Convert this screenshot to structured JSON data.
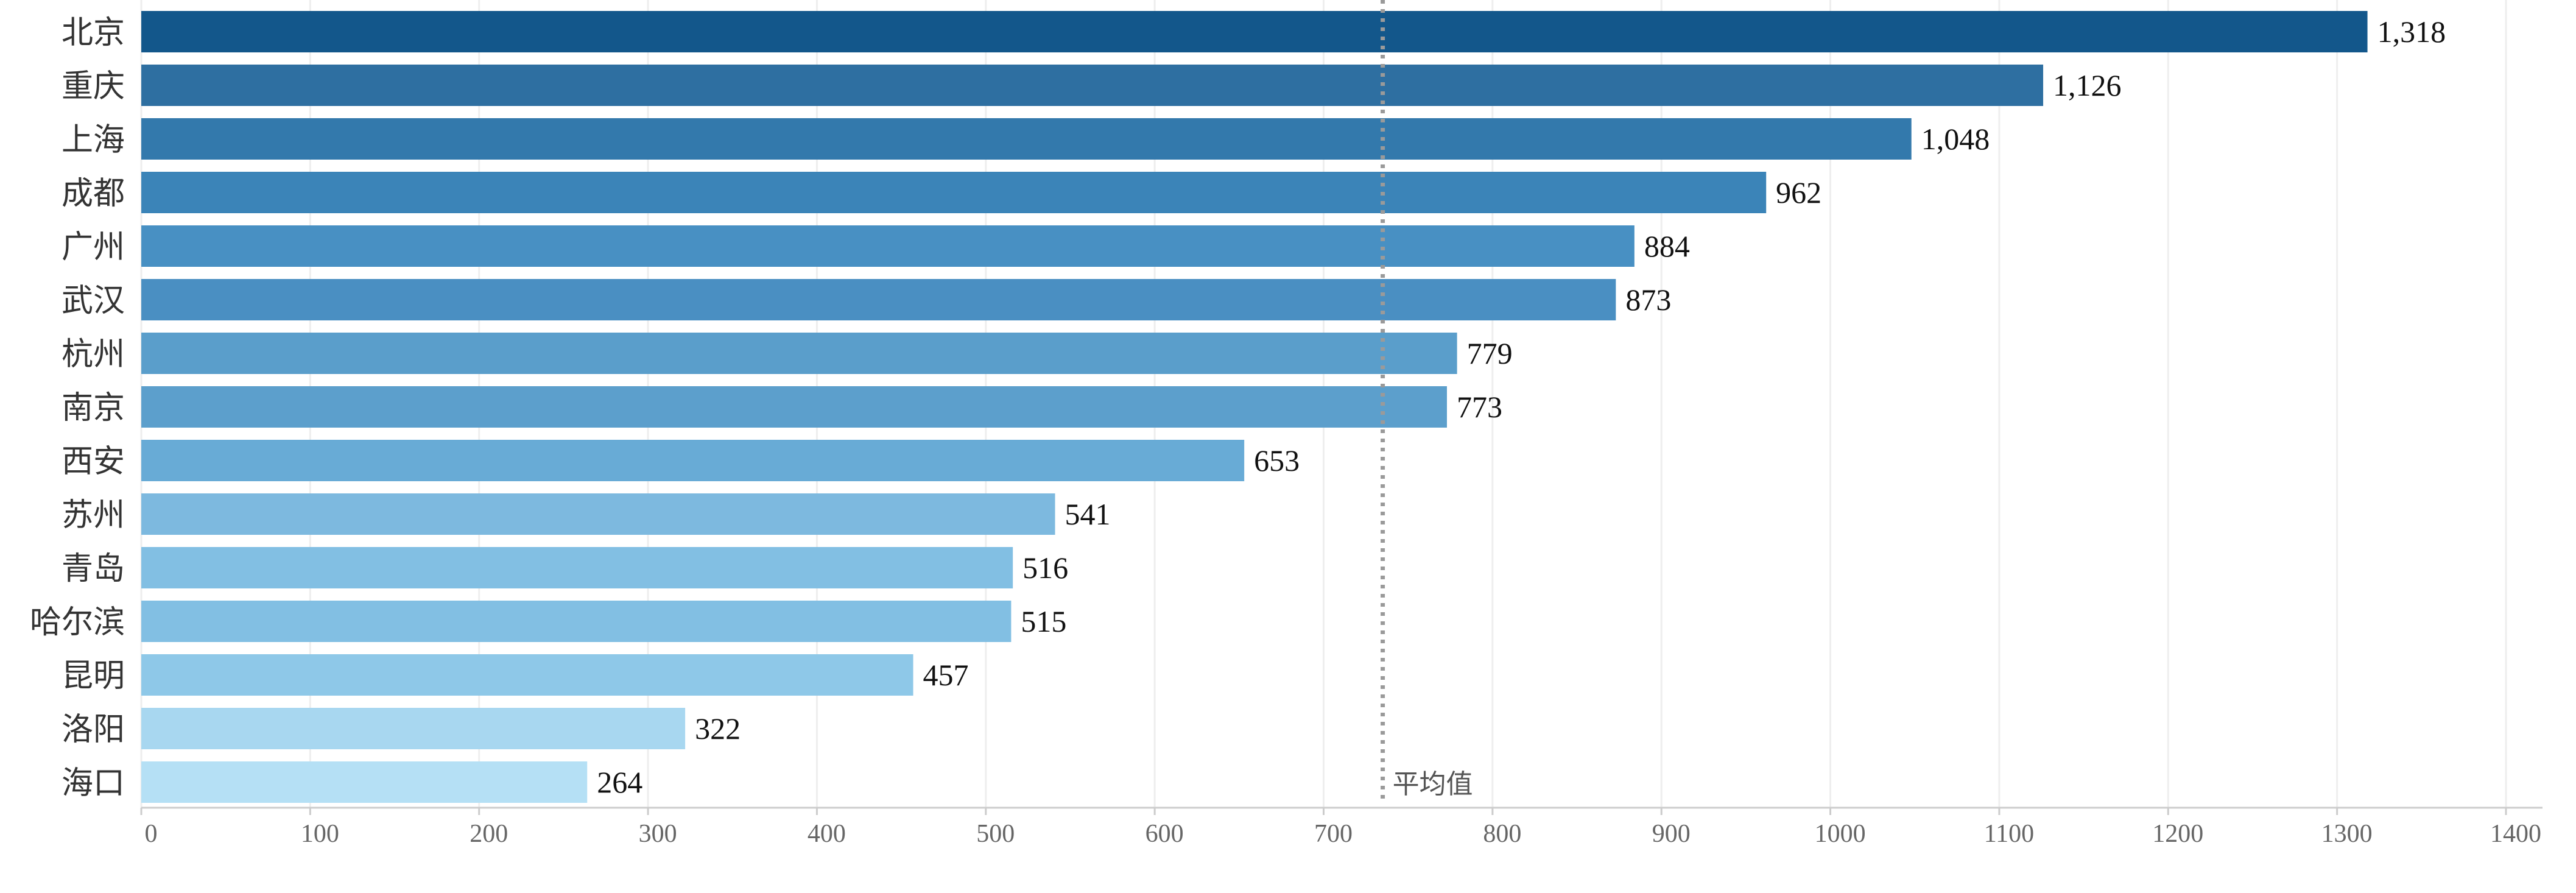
{
  "chart_data": {
    "type": "bar",
    "orientation": "horizontal",
    "categories": [
      "北京",
      "重庆",
      "上海",
      "成都",
      "广州",
      "武汉",
      "杭州",
      "南京",
      "西安",
      "苏州",
      "青岛",
      "哈尔滨",
      "昆明",
      "洛阳",
      "海口"
    ],
    "values": [
      1318,
      1126,
      1048,
      962,
      884,
      873,
      779,
      773,
      653,
      541,
      516,
      515,
      457,
      322,
      264
    ],
    "value_labels": [
      "1,318",
      "1,126",
      "1,048",
      "962",
      "884",
      "873",
      "779",
      "773",
      "653",
      "541",
      "516",
      "515",
      "457",
      "322",
      "264"
    ],
    "bar_colors": [
      "#13578b",
      "#2e6fa1",
      "#3379ac",
      "#3b84b8",
      "#4890c3",
      "#4a8fc2",
      "#5a9ecb",
      "#5c9fcc",
      "#68abd6",
      "#7db9df",
      "#82bfe3",
      "#82bfe3",
      "#8ec8e8",
      "#a8d7f0",
      "#b5e0f5"
    ],
    "xlim": [
      0,
      1400
    ],
    "xticks": [
      0,
      100,
      200,
      300,
      400,
      500,
      600,
      700,
      800,
      900,
      1000,
      1100,
      1200,
      1300,
      1400
    ],
    "grid": "vertical",
    "reference_line": {
      "label": "平均值",
      "value": 735,
      "style": "dotted"
    },
    "title": "",
    "xlabel": "",
    "ylabel": ""
  }
}
